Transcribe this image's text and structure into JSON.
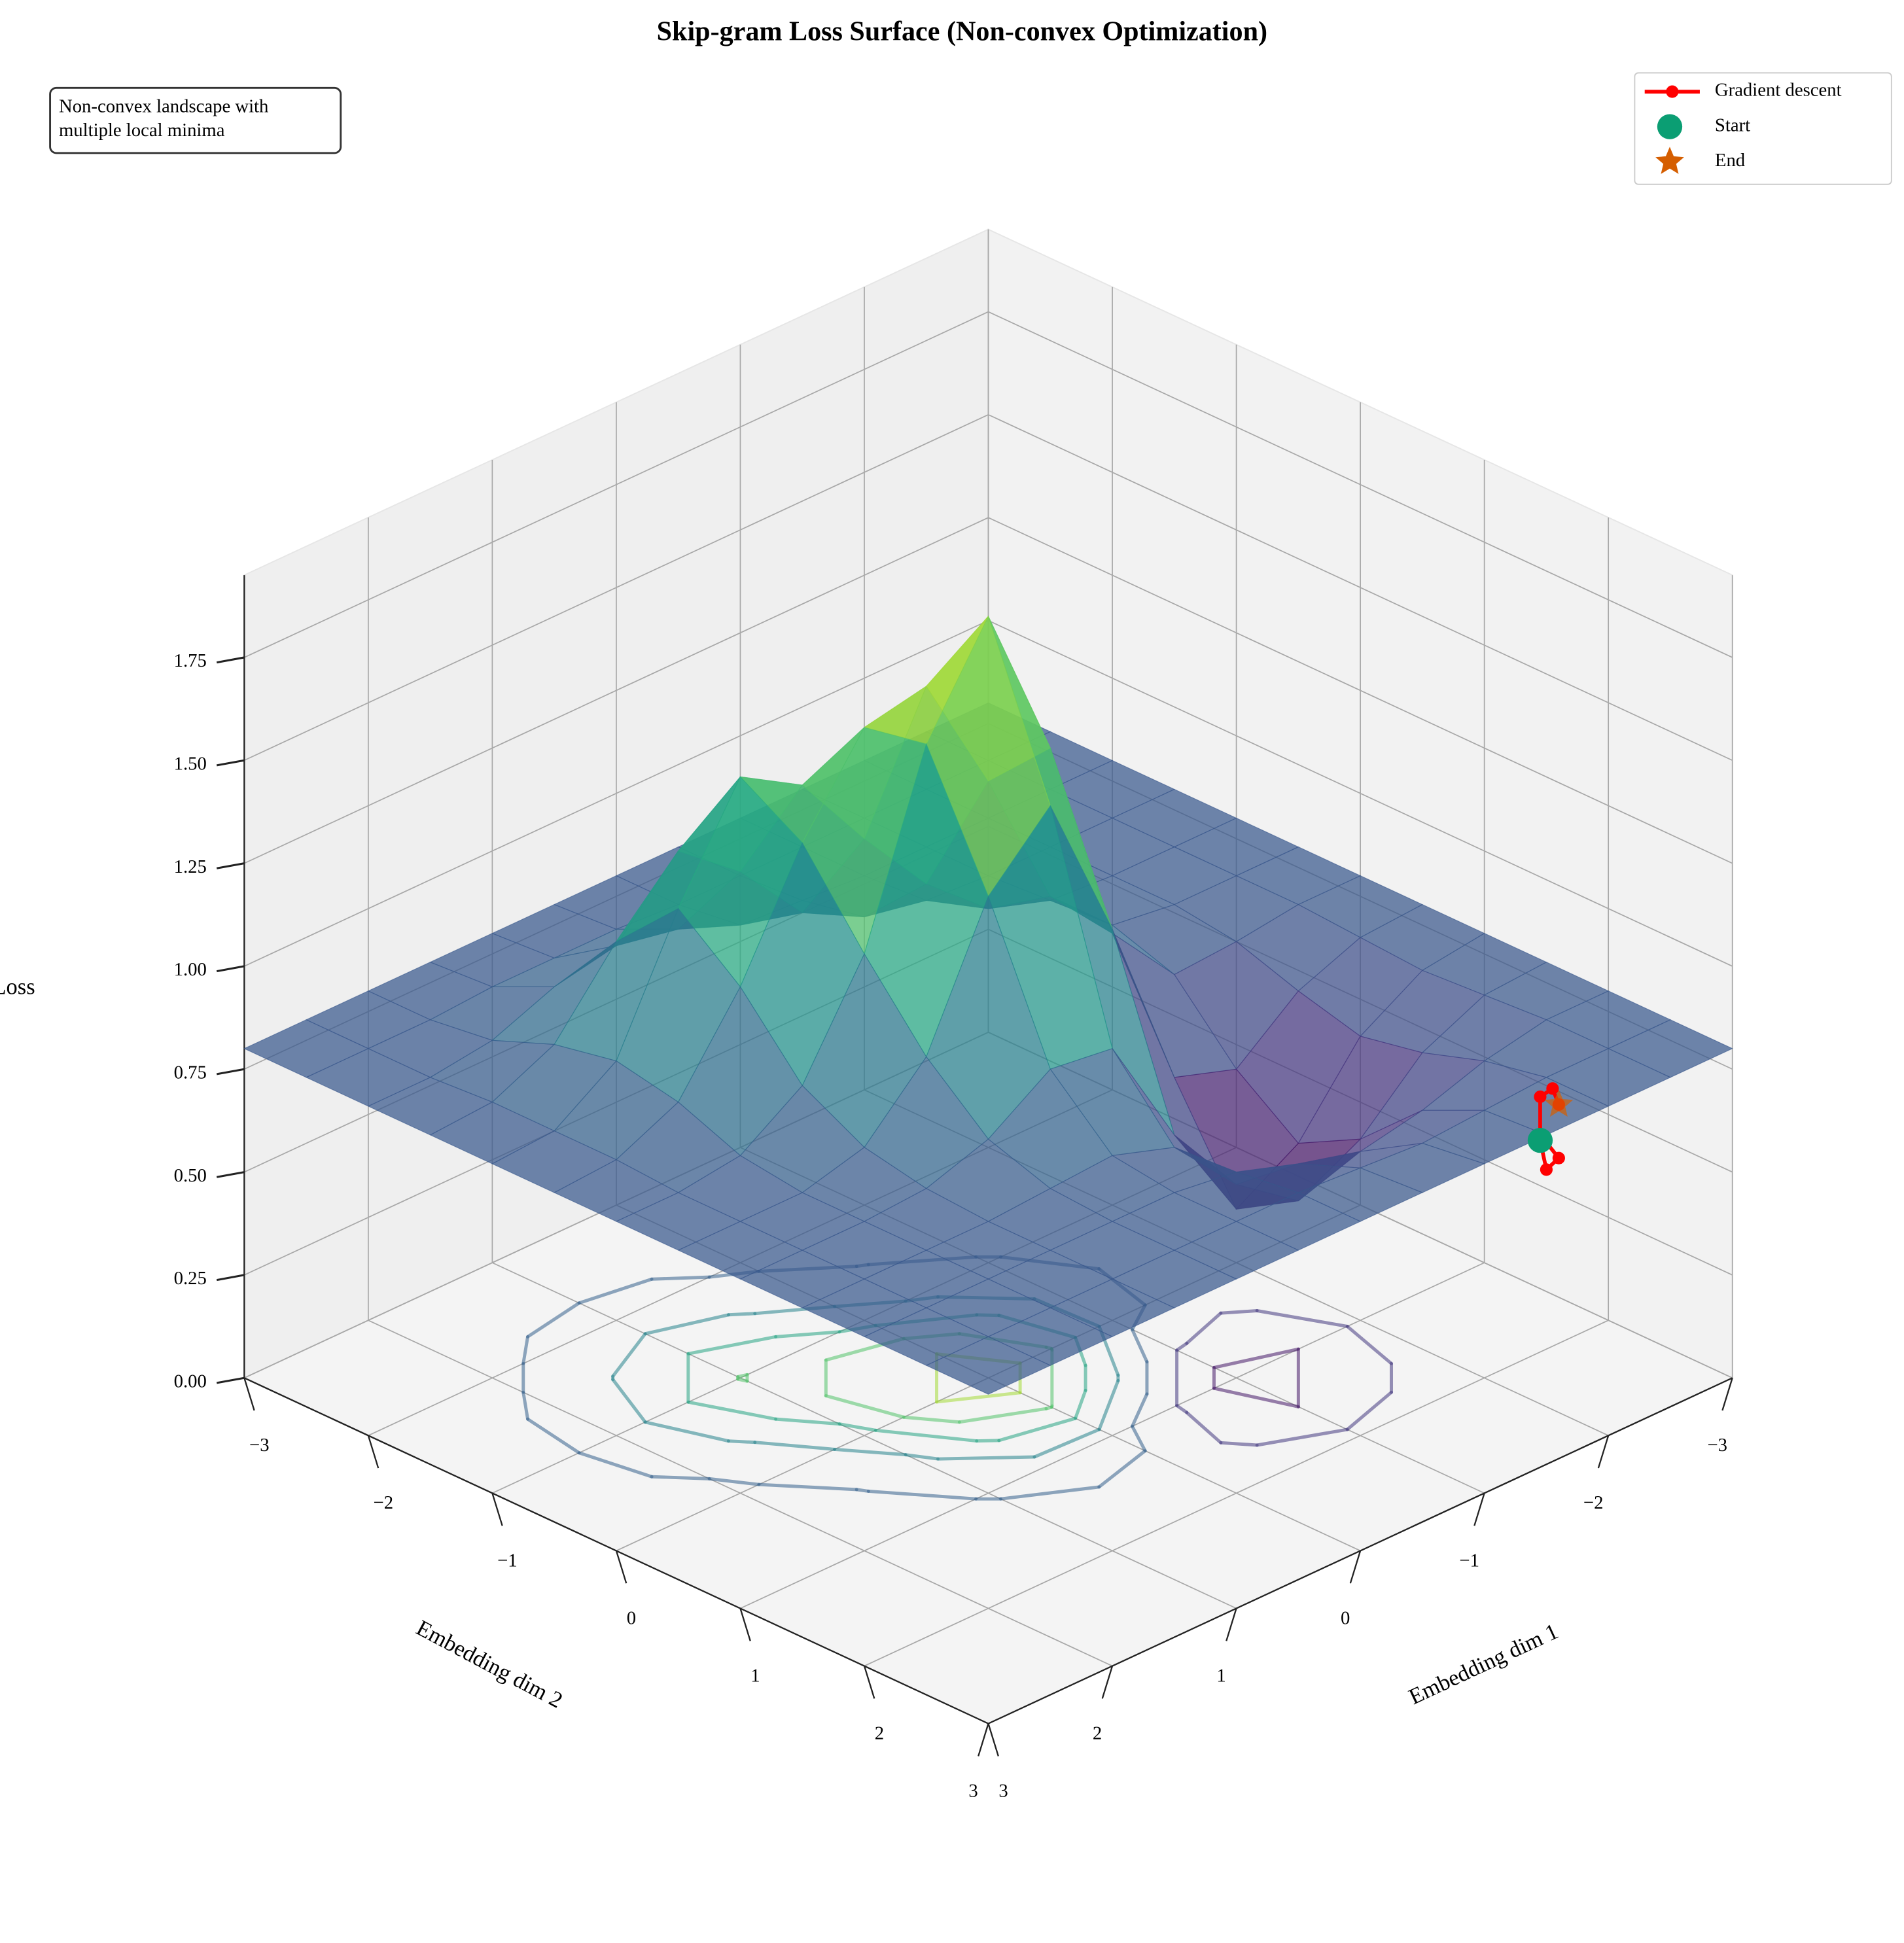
{
  "chart_data": {
    "type": "surface3d",
    "title": "Skip-gram Loss Surface (Non-convex Optimization)",
    "xlabel": "Embedding dim 1",
    "ylabel": "Embedding dim 2",
    "zlabel": "Loss",
    "x": [
      -3,
      -2.5,
      -2,
      -1.5,
      -1,
      -0.5,
      0,
      0.5,
      1,
      1.5,
      2,
      2.5,
      3
    ],
    "y": [
      -3,
      -2.5,
      -2,
      -1.5,
      -1,
      -0.5,
      0,
      0.5,
      1,
      1.5,
      2,
      2.5,
      3
    ],
    "z": [
      [
        0.8,
        0.8,
        0.8,
        0.8,
        0.8,
        0.8,
        0.8,
        0.8,
        0.8,
        0.8,
        0.8,
        0.8,
        0.8
      ],
      [
        0.8,
        0.8,
        0.8,
        0.8,
        0.8,
        0.8,
        0.8,
        0.79,
        0.78,
        0.79,
        0.8,
        0.8,
        0.8
      ],
      [
        0.8,
        0.8,
        0.8,
        0.8,
        0.8,
        0.8,
        0.78,
        0.73,
        0.69,
        0.72,
        0.77,
        0.8,
        0.8
      ],
      [
        0.8,
        0.8,
        0.8,
        0.8,
        0.81,
        0.82,
        0.77,
        0.61,
        0.5,
        0.58,
        0.72,
        0.79,
        0.8
      ],
      [
        0.8,
        0.8,
        0.8,
        0.81,
        0.86,
        0.96,
        0.94,
        0.66,
        0.41,
        0.5,
        0.69,
        0.78,
        0.8
      ],
      [
        0.8,
        0.8,
        0.81,
        0.84,
        0.99,
        1.31,
        1.46,
        1.09,
        0.66,
        0.61,
        0.73,
        0.79,
        0.8
      ],
      [
        0.8,
        0.8,
        0.82,
        0.92,
        1.17,
        1.61,
        1.85,
        1.46,
        0.94,
        0.77,
        0.78,
        0.8,
        0.8
      ],
      [
        0.8,
        0.81,
        0.88,
        1.09,
        1.37,
        1.58,
        1.61,
        1.31,
        0.96,
        0.82,
        0.8,
        0.8,
        0.8
      ],
      [
        0.8,
        0.81,
        0.91,
        1.21,
        1.46,
        1.37,
        1.17,
        0.99,
        0.86,
        0.81,
        0.8,
        0.8,
        0.8
      ],
      [
        0.8,
        0.81,
        0.88,
        1.06,
        1.21,
        1.09,
        0.92,
        0.84,
        0.81,
        0.8,
        0.8,
        0.8,
        0.8
      ],
      [
        0.8,
        0.8,
        0.82,
        0.88,
        0.91,
        0.88,
        0.82,
        0.8,
        0.8,
        0.8,
        0.8,
        0.8,
        0.8
      ],
      [
        0.8,
        0.8,
        0.8,
        0.81,
        0.81,
        0.81,
        0.8,
        0.8,
        0.8,
        0.8,
        0.8,
        0.8,
        0.8
      ],
      [
        0.8,
        0.8,
        0.8,
        0.8,
        0.8,
        0.8,
        0.8,
        0.8,
        0.8,
        0.8,
        0.8,
        0.8,
        0.8
      ]
    ],
    "colormap": "viridis",
    "contour_levels": [
      0.5,
      0.65,
      0.85,
      1.05,
      1.25,
      1.45,
      1.65
    ],
    "xlim": [
      -3,
      3
    ],
    "ylim": [
      -3,
      3
    ],
    "zlim": [
      0,
      1.95
    ],
    "xticks": [
      {
        "value": -3,
        "label": "−3"
      },
      {
        "value": -2,
        "label": "−2"
      },
      {
        "value": -1,
        "label": "−1"
      },
      0,
      1,
      2,
      3
    ],
    "yticks": [
      {
        "value": -3,
        "label": "−3"
      },
      {
        "value": -2,
        "label": "−2"
      },
      {
        "value": -1,
        "label": "−1"
      },
      0,
      1,
      2,
      3
    ],
    "zticks": [
      {
        "value": 0,
        "label": "0.00"
      },
      {
        "value": 0.25,
        "label": "0.25"
      },
      {
        "value": 0.5,
        "label": "0.50"
      },
      {
        "value": 0.75,
        "label": "0.75"
      },
      {
        "value": 1,
        "label": "1.00"
      },
      {
        "value": 1.25,
        "label": "1.25"
      },
      {
        "value": 1.5,
        "label": "1.50"
      },
      {
        "value": 1.75,
        "label": "1.75"
      }
    ],
    "grid": true,
    "path": {
      "name": "Gradient descent",
      "color": "#ff0000",
      "x": [
        -2.5,
        -2.45,
        -2.6,
        -2.55,
        -2.7,
        -2.75,
        -2.6
      ],
      "y": [
        1.95,
        2.05,
        2.0,
        1.9,
        1.75,
        1.8,
        2.0
      ],
      "z": [
        0.5,
        0.45,
        0.45,
        0.5,
        0.55,
        0.57,
        0.58
      ]
    },
    "start": {
      "name": "Start",
      "color": "#0b9e73"
    },
    "end": {
      "name": "End",
      "color": "#d55e00"
    },
    "legend": "upper right",
    "annotation": [
      "Non-convex landscape with",
      "multiple local minima"
    ]
  }
}
